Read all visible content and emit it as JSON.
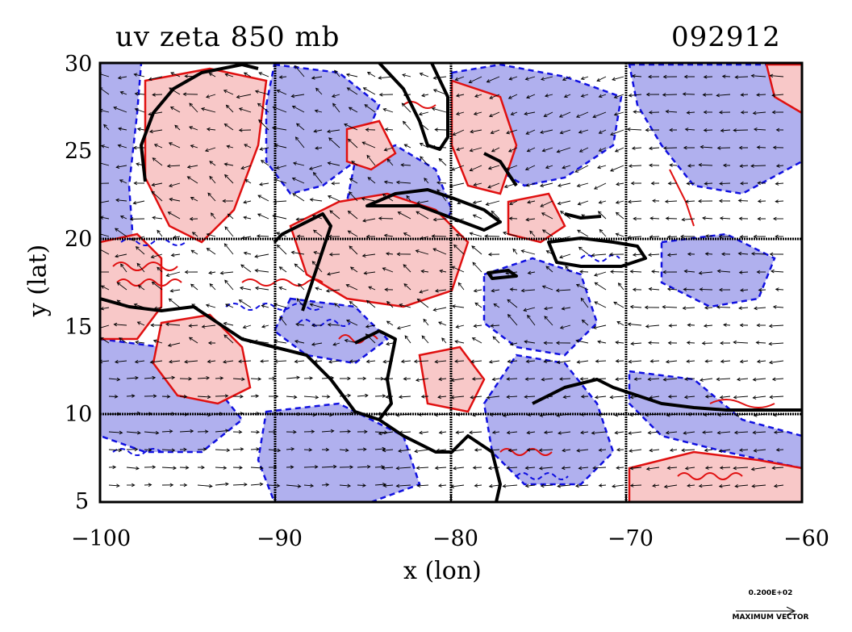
{
  "title_left": "uv zeta 850 mb",
  "title_right": "092912",
  "x_axis": {
    "label": "x (lon)",
    "ticks": [
      "−100",
      "−90",
      "−80",
      "−70",
      "−60"
    ],
    "range": [
      -100,
      -60
    ]
  },
  "y_axis": {
    "label": "y (lat)",
    "ticks": [
      "30",
      "25",
      "20",
      "15",
      "10",
      "5"
    ],
    "range": [
      5,
      30
    ]
  },
  "grid": {
    "lon_lines": [
      -90,
      -80,
      -70
    ],
    "lat_lines": [
      10,
      20
    ]
  },
  "reference_vector": {
    "value": "0.200E+02",
    "label": "MAXIMUM VECTOR"
  },
  "colors": {
    "positive_fill": "#f8c8c8",
    "negative_fill": "#b0b0ee",
    "positive_contour": "#e01010",
    "negative_contour": "#1010e0",
    "coastline": "#000000"
  }
}
